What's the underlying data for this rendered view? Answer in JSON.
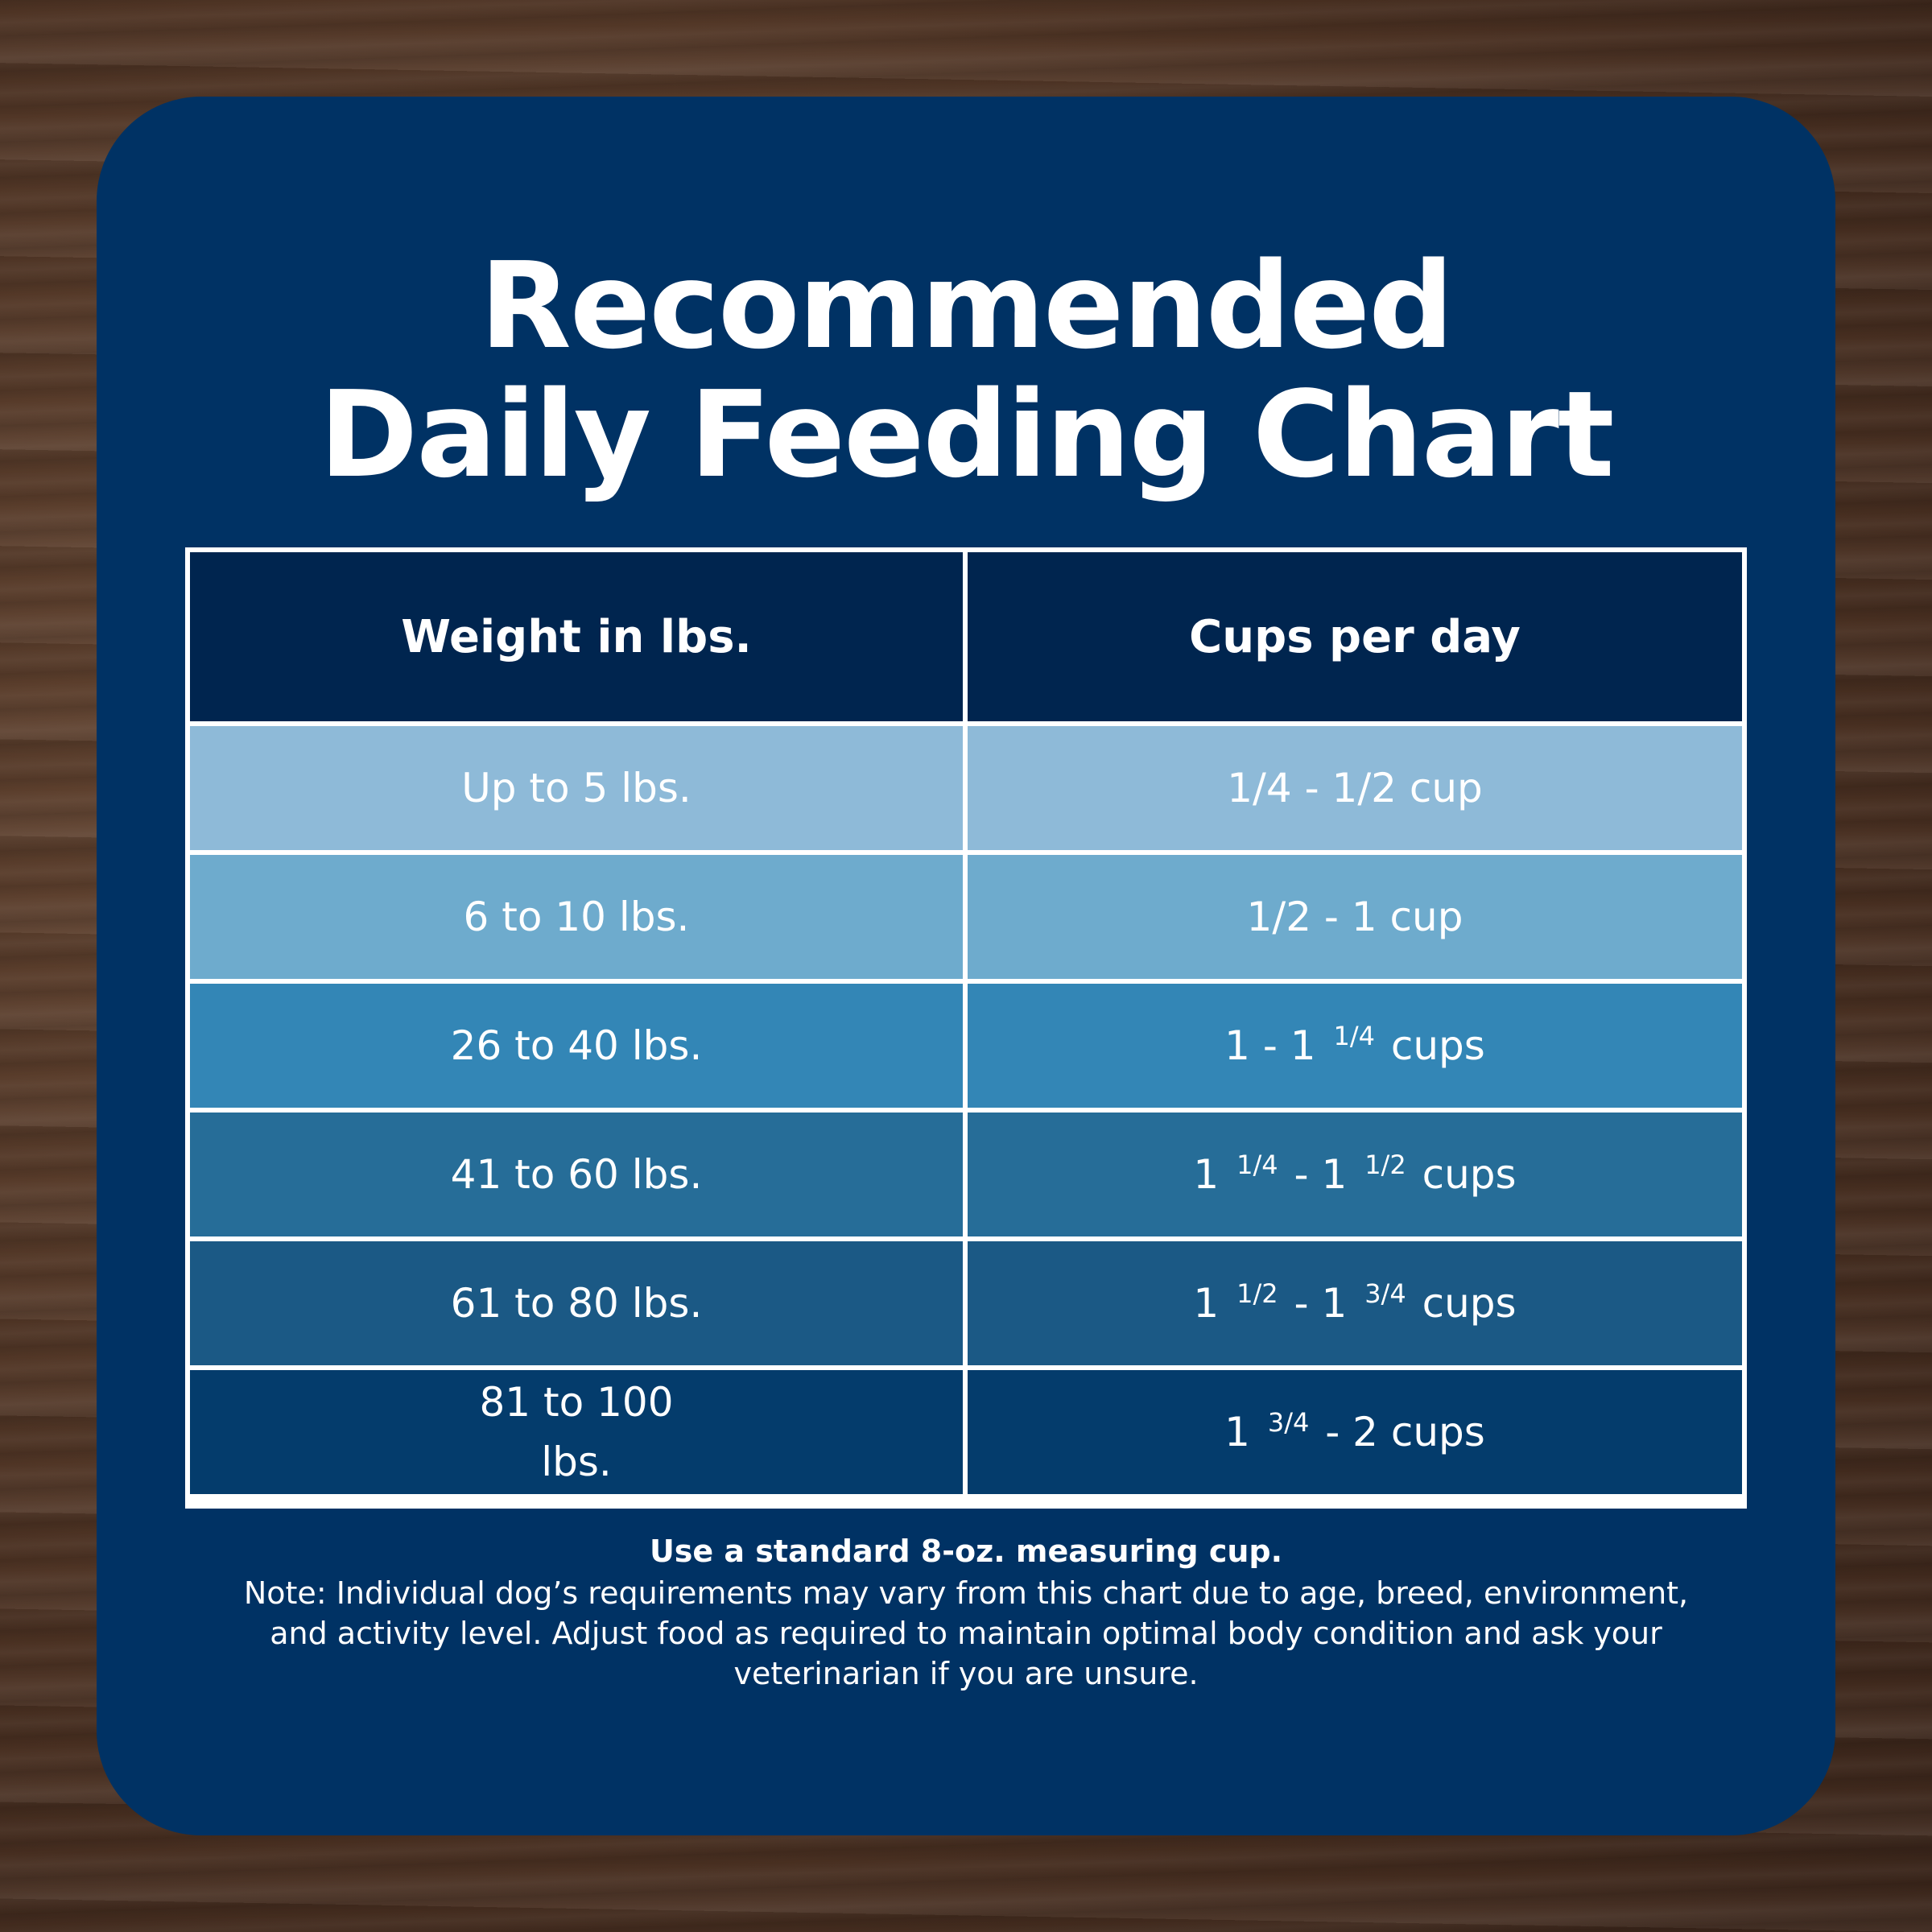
{
  "title": {
    "line1": "Recommended",
    "line2": "Daily Feeding Chart"
  },
  "table": {
    "headers": [
      "Weight in lbs.",
      "Cups per day"
    ],
    "header_color": "#00254f",
    "rows": [
      {
        "weight": "Up to 5 lbs.",
        "cups": [
          "1/4 - 1/2 cup"
        ],
        "color": "#8ebad8"
      },
      {
        "weight": "6 to 10 lbs.",
        "cups": [
          "1/2 - 1 cup"
        ],
        "color": "#6eabcd"
      },
      {
        "weight": "26 to 40 lbs.",
        "cups": [
          "1 - 1 ",
          "1/4",
          " cups"
        ],
        "color": "#3386b6"
      },
      {
        "weight": "41 to 60 lbs.",
        "cups": [
          "1 ",
          "1/4",
          " - 1 ",
          "1/2",
          " cups"
        ],
        "color": "#266d98"
      },
      {
        "weight": "61 to 80 lbs.",
        "cups": [
          "1 ",
          "1/2",
          " - 1 ",
          "3/4",
          " cups"
        ],
        "color": "#1b5985"
      },
      {
        "weight_lines": [
          "81 to 100",
          "lbs."
        ],
        "cups": [
          "1 ",
          "3/4",
          " - 2 cups"
        ],
        "color": "#043c6c"
      }
    ]
  },
  "footer": {
    "bold_line": "Use a standard 8-oz. measuring cup.",
    "note_lines": [
      "Note: Individual dog’s requirements may vary from this chart due to age, breed, environment,",
      "and activity level. Adjust food as required to maintain optimal body condition and ask your",
      "veterinarian if you are unsure."
    ]
  },
  "colors": {
    "card": "#003264",
    "background": "wood-brown",
    "text": "#ffffff"
  }
}
